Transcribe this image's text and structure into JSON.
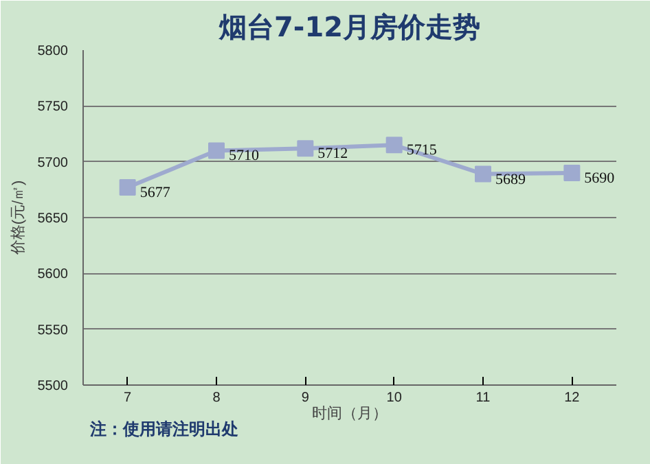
{
  "chart_data": {
    "type": "line",
    "title": "烟台7-12月房价走势",
    "xlabel": "时间（月）",
    "ylabel": "价格(元/㎡)",
    "categories": [
      "7",
      "8",
      "9",
      "10",
      "11",
      "12"
    ],
    "series": [
      {
        "color": "#9eaacf",
        "values": [
          5677,
          5710,
          5712,
          5715,
          5689,
          5690
        ]
      }
    ],
    "ylim": [
      5500,
      5800
    ],
    "yticks": [
      5500,
      5550,
      5600,
      5650,
      5700,
      5750,
      5800
    ],
    "grid": "y",
    "marker": "square",
    "line_style": "solid",
    "data_labels": true,
    "annotations": [
      "注：使用请注明出处"
    ]
  }
}
